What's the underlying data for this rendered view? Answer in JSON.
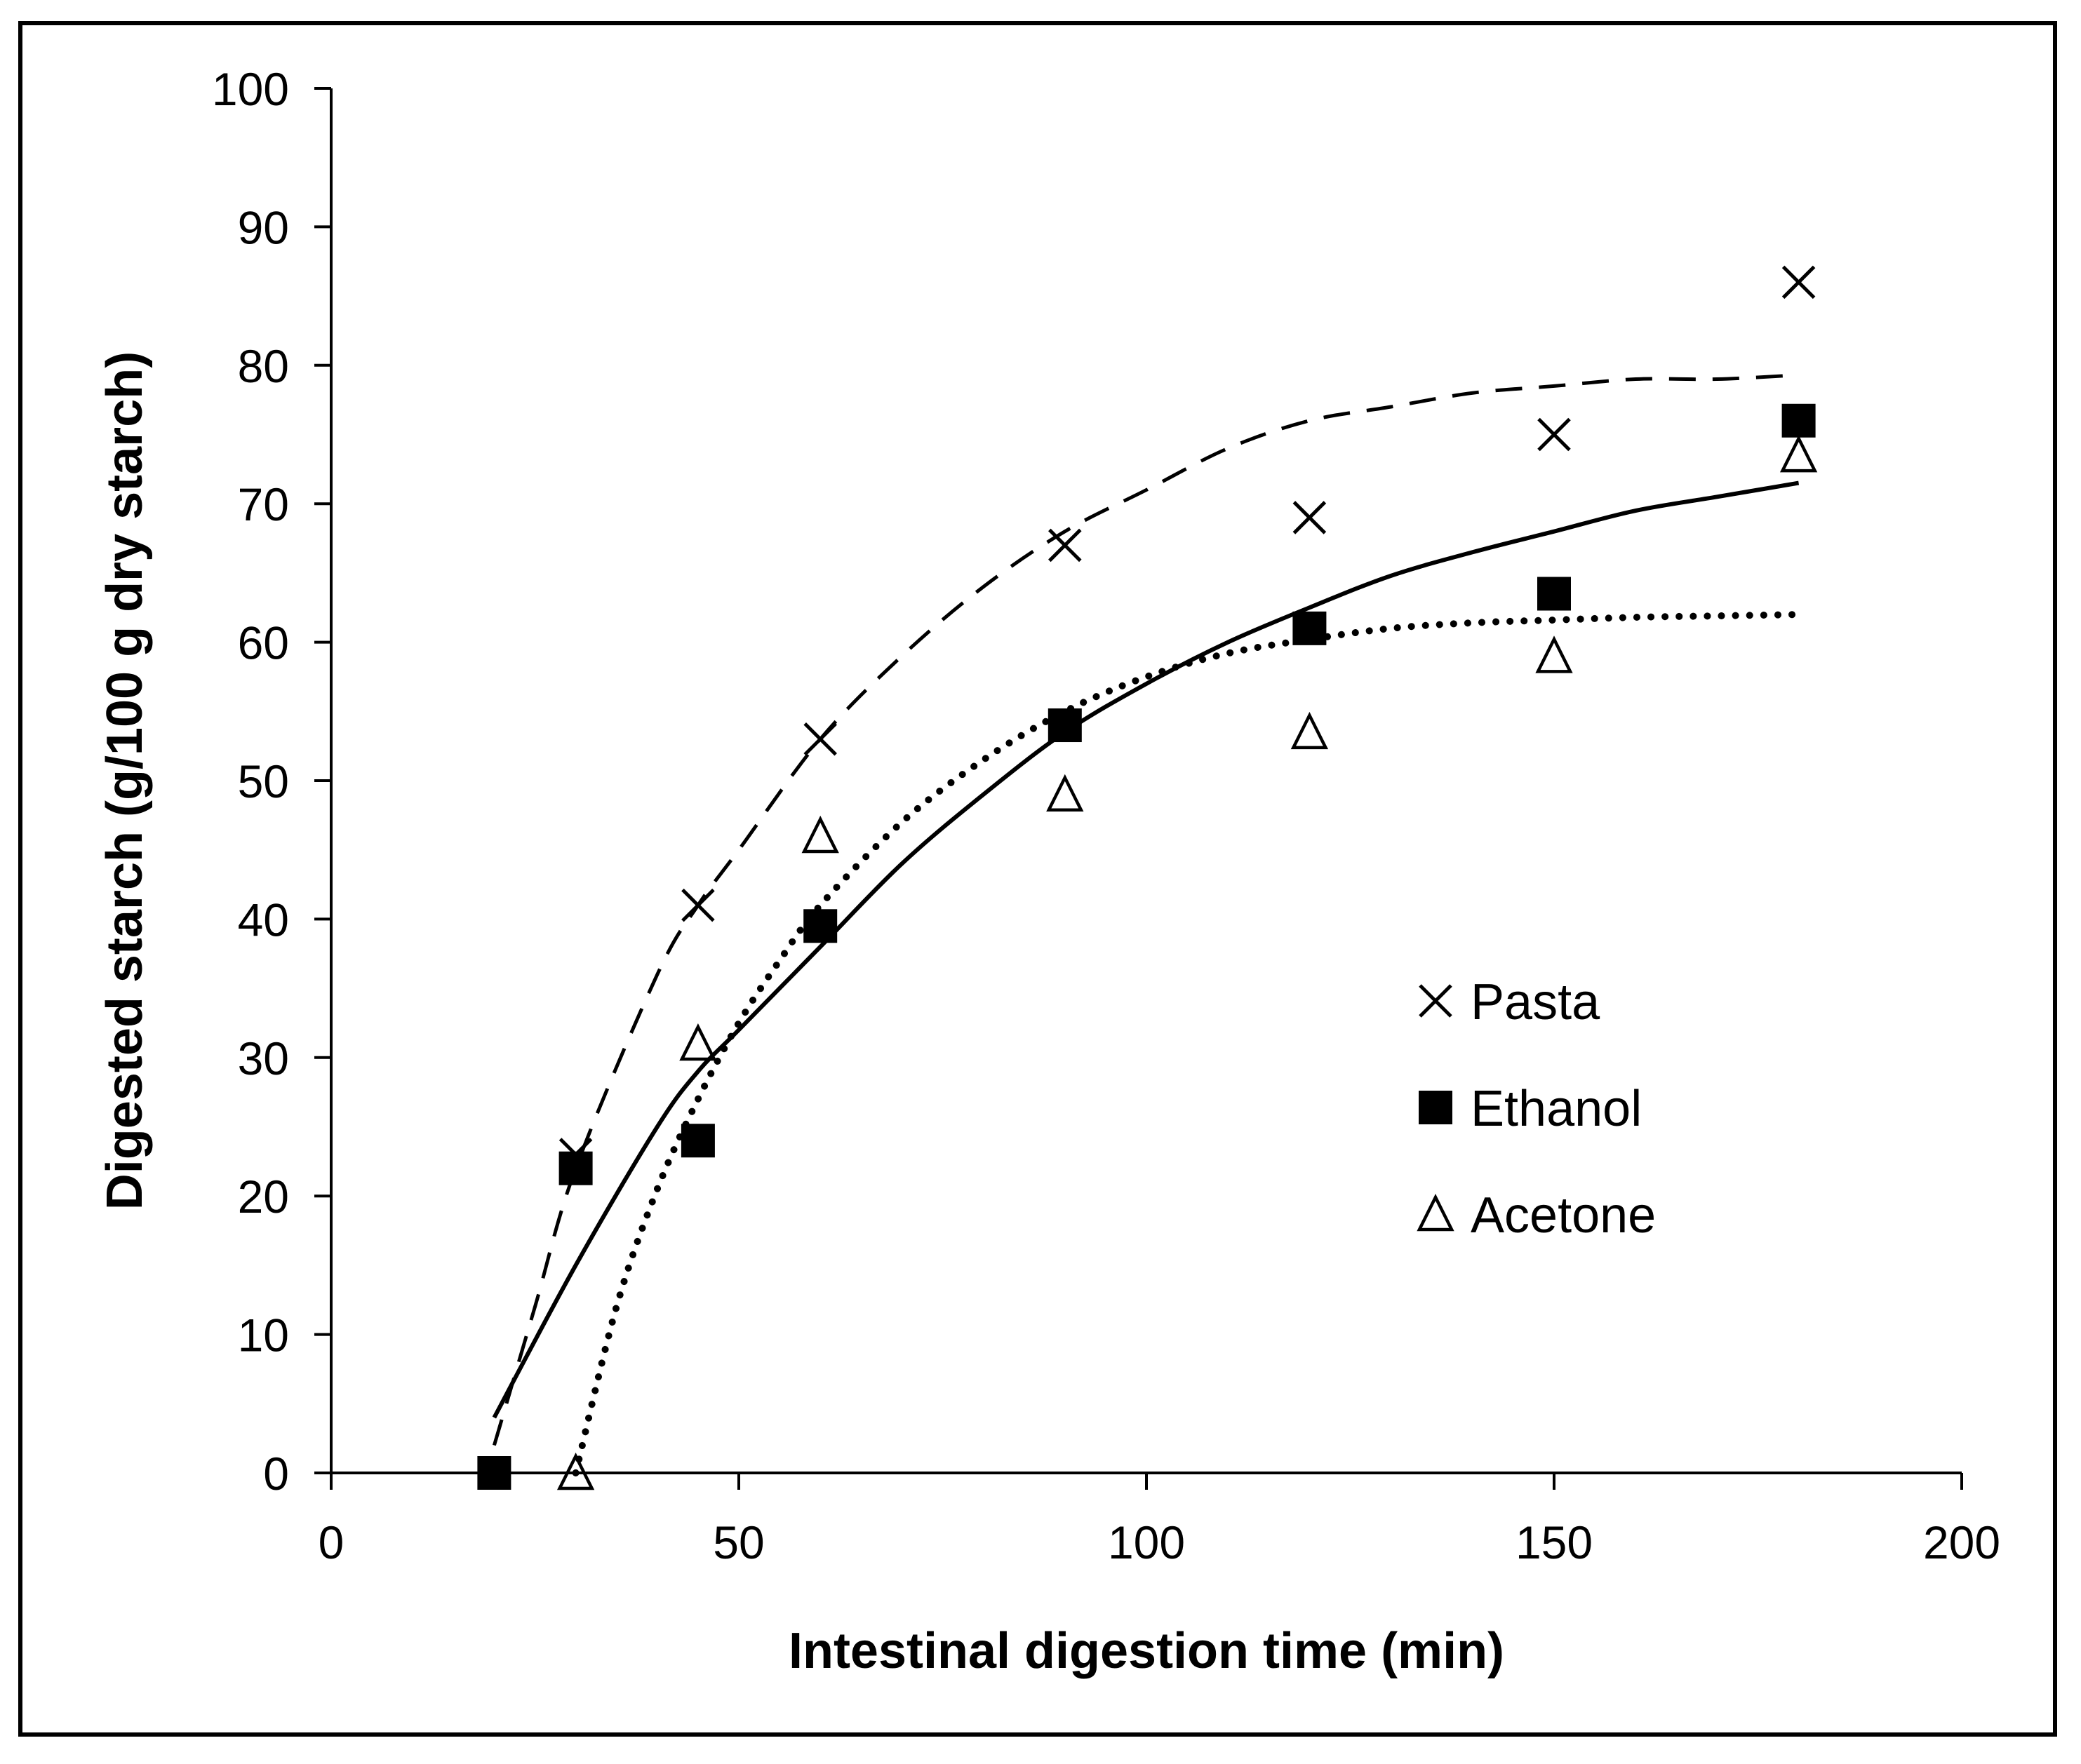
{
  "chart_data": {
    "type": "scatter",
    "xlabel": "Intestinal digestion time (min)",
    "ylabel": "Digested starch (g/100 g dry starch)",
    "xlim": [
      0,
      200
    ],
    "ylim": [
      0,
      100
    ],
    "xticks": [
      0,
      50,
      100,
      150,
      200
    ],
    "yticks": [
      0,
      10,
      20,
      30,
      40,
      50,
      60,
      70,
      80,
      90,
      100
    ],
    "grid": false,
    "legend_position": "center-right",
    "series": [
      {
        "name": "Pasta",
        "marker": "x",
        "line_style": "dashed",
        "color": "#000000",
        "x": [
          20,
          30,
          45,
          60,
          90,
          120,
          150,
          180
        ],
        "y": [
          0,
          23,
          41,
          53,
          67,
          69,
          75,
          86
        ],
        "fit": {
          "x": [
            20,
            25,
            30,
            40,
            45,
            50,
            60,
            70,
            80,
            90,
            100,
            110,
            120,
            130,
            140,
            150,
            160,
            170,
            180
          ],
          "y": [
            2,
            12,
            22,
            36,
            41,
            45,
            53,
            59,
            64,
            68,
            71,
            74,
            76,
            77,
            78,
            78.5,
            79,
            79,
            79.3
          ]
        }
      },
      {
        "name": "Ethanol",
        "marker": "square",
        "line_style": "solid",
        "color": "#000000",
        "x": [
          20,
          30,
          45,
          60,
          90,
          120,
          150,
          180
        ],
        "y": [
          0,
          22,
          24,
          39.5,
          54,
          61,
          63.5,
          76
        ],
        "fit": {
          "x": [
            20,
            30,
            40,
            45,
            50,
            60,
            70,
            80,
            90,
            100,
            110,
            120,
            130,
            140,
            150,
            160,
            170,
            180
          ],
          "y": [
            4,
            15,
            25,
            29,
            32,
            38,
            44,
            49,
            53.5,
            57,
            60,
            62.5,
            64.8,
            66.5,
            68,
            69.5,
            70.5,
            71.5
          ]
        }
      },
      {
        "name": "Acetone",
        "marker": "triangle-open",
        "line_style": "dotted",
        "color": "#000000",
        "x": [
          30,
          45,
          60,
          90,
          120,
          150,
          180
        ],
        "y": [
          0,
          31,
          46,
          49,
          53.5,
          59,
          73.5
        ],
        "fit": {
          "x": [
            30,
            35,
            40,
            45,
            50,
            55,
            60,
            70,
            80,
            90,
            100,
            110,
            120,
            130,
            140,
            150,
            160,
            170,
            180
          ],
          "y": [
            0,
            12,
            20.5,
            27,
            32.5,
            37,
            41,
            47,
            51.5,
            55,
            57.5,
            59.2,
            60.2,
            61,
            61.4,
            61.6,
            61.8,
            61.9,
            62
          ]
        }
      }
    ]
  }
}
